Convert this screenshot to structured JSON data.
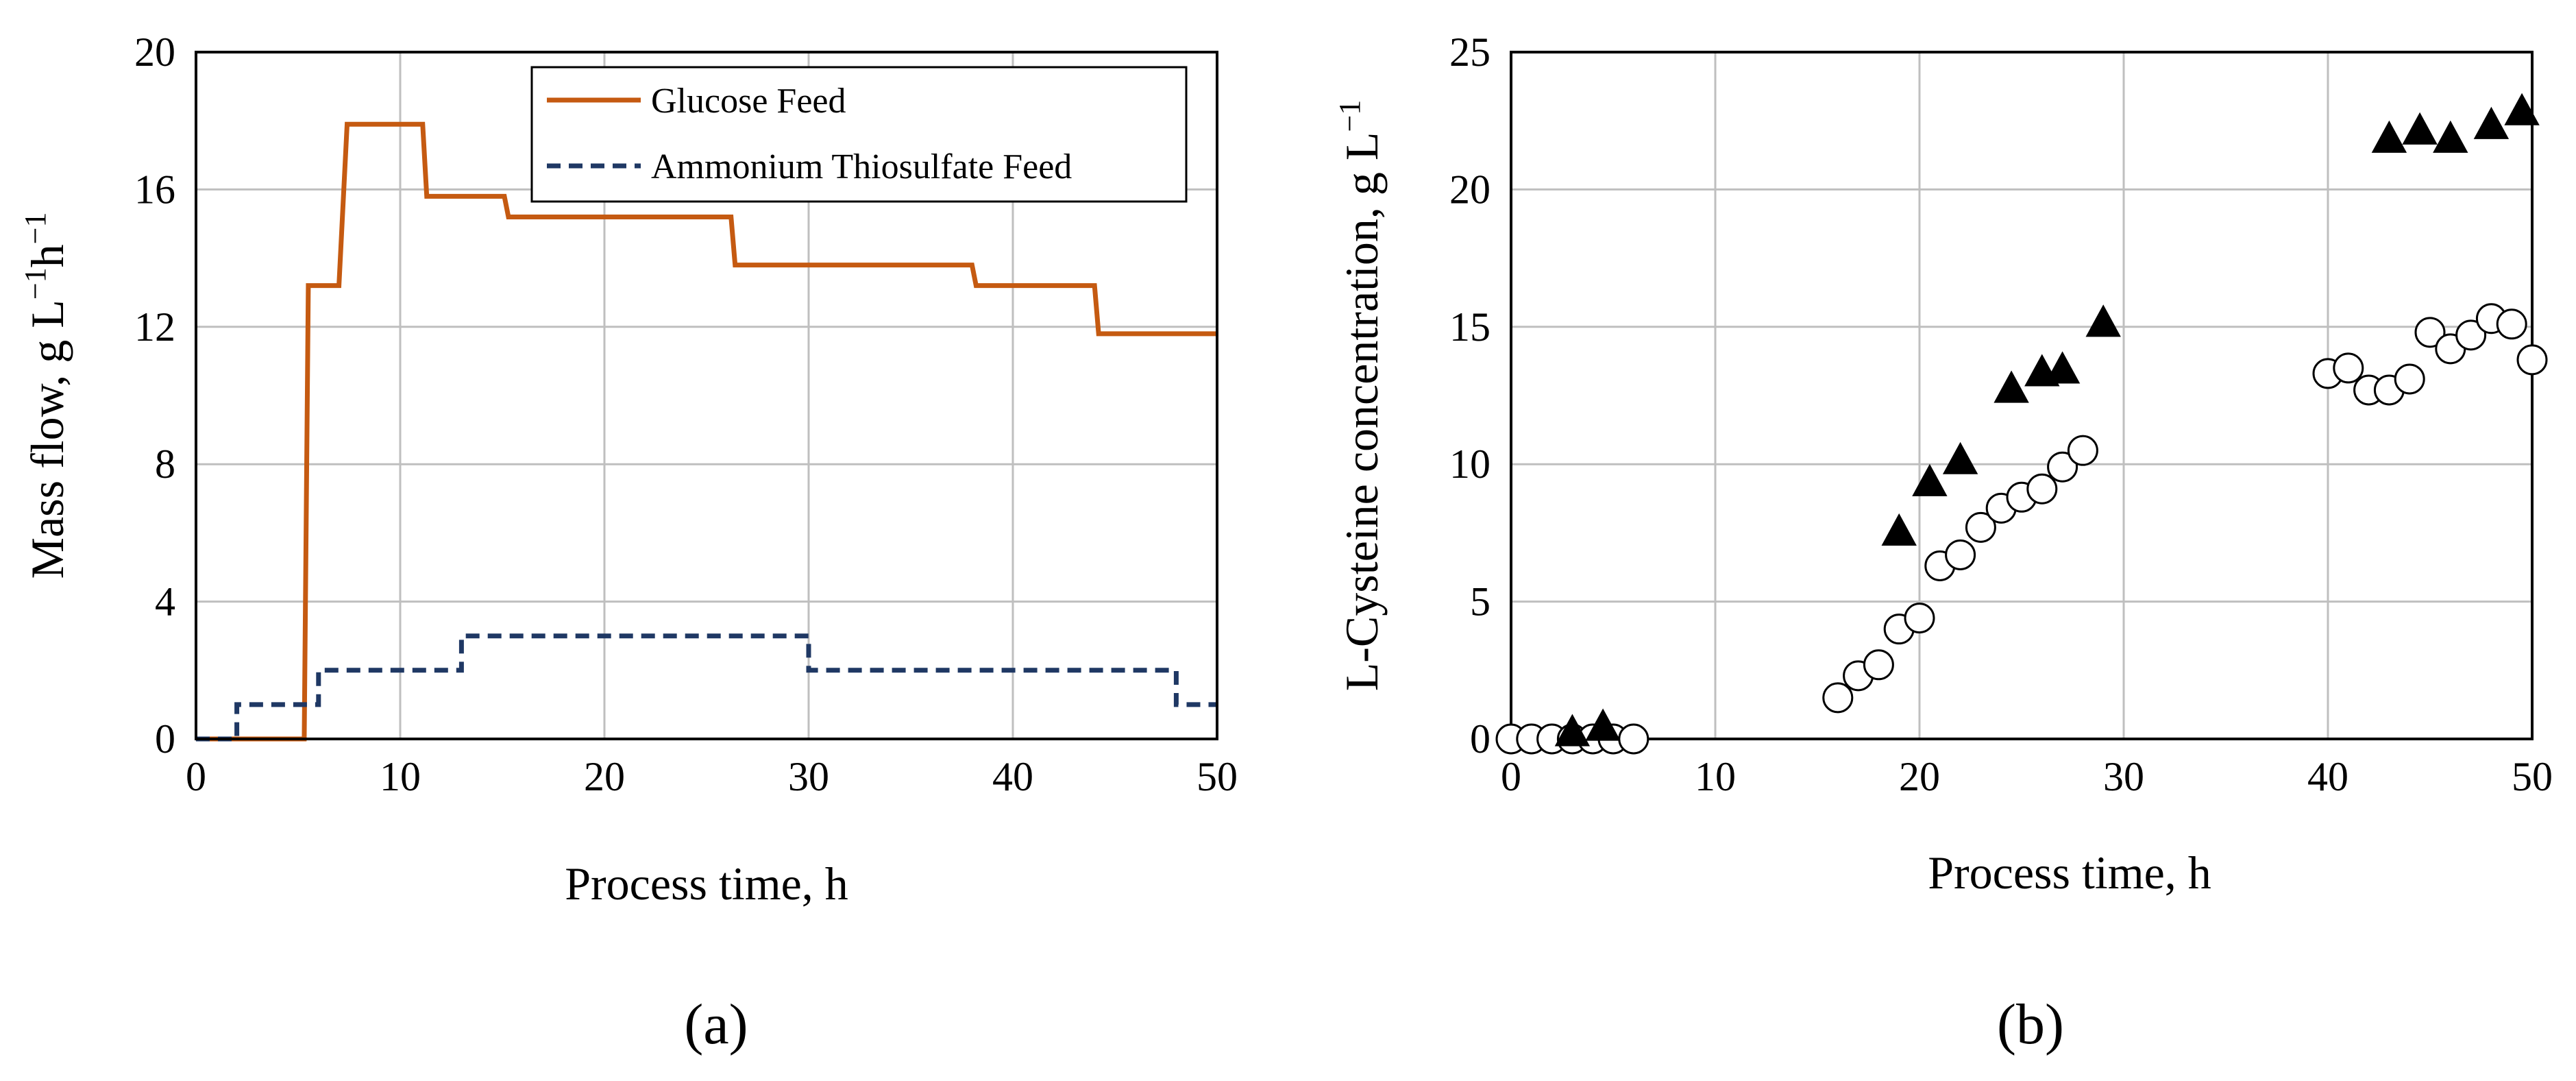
{
  "chart_data": [
    {
      "id": "a",
      "type": "line",
      "panel_label": "(a)",
      "xlabel": "Process time, h",
      "ylabel_main": "Mass flow, g L",
      "ylabel_sup1": "−1",
      "ylabel_mid": "h",
      "ylabel_sup2": "−1",
      "xlim": [
        0,
        50
      ],
      "ylim": [
        0,
        20
      ],
      "xticks": [
        "0",
        "10",
        "20",
        "30",
        "40",
        "50"
      ],
      "yticks": [
        "0",
        "4",
        "8",
        "12",
        "16",
        "20"
      ],
      "xtick_values": [
        0,
        10,
        20,
        30,
        40,
        50
      ],
      "ytick_values": [
        0,
        4,
        8,
        12,
        16,
        20
      ],
      "grid": true,
      "legend_position": "top-right",
      "series": [
        {
          "name": "Glucose Feed",
          "color": "#C55A11",
          "style": "solid",
          "x": [
            0,
            5.3,
            5.5,
            7.0,
            7.4,
            11.1,
            11.3,
            15.1,
            15.3,
            26.2,
            26.4,
            38.0,
            38.2,
            44.0,
            44.2,
            50
          ],
          "y": [
            0,
            0,
            13.2,
            13.2,
            17.9,
            17.9,
            15.8,
            15.8,
            15.2,
            15.2,
            13.8,
            13.8,
            13.2,
            13.2,
            11.8,
            11.8
          ]
        },
        {
          "name": "Ammonium Thiosulfate Feed",
          "color": "#1F3864",
          "style": "dashed",
          "x": [
            0,
            2,
            2,
            6,
            6,
            13,
            13,
            30,
            30,
            48,
            48,
            50
          ],
          "y": [
            0,
            0,
            1,
            1,
            2,
            2,
            3,
            3,
            2,
            2,
            1,
            1
          ]
        }
      ]
    },
    {
      "id": "b",
      "type": "scatter",
      "panel_label": "(b)",
      "xlabel": "Process time, h",
      "ylabel_main": "L-Cysteine concentration, g L",
      "ylabel_sup1": "−1",
      "xlim": [
        0,
        50
      ],
      "ylim": [
        0,
        25
      ],
      "xticks": [
        "0",
        "10",
        "20",
        "30",
        "40",
        "50"
      ],
      "yticks": [
        "0",
        "5",
        "10",
        "15",
        "20",
        "25"
      ],
      "xtick_values": [
        0,
        10,
        20,
        30,
        40,
        50
      ],
      "ytick_values": [
        0,
        5,
        10,
        15,
        20,
        25
      ],
      "grid": true,
      "series": [
        {
          "name": "open circles",
          "marker": "circle-open",
          "x": [
            0,
            1,
            2,
            3,
            4,
            5,
            6,
            16,
            17,
            18,
            19,
            20,
            21,
            22,
            23,
            24,
            25,
            26,
            27,
            28,
            40,
            41,
            42,
            43,
            44,
            45,
            46,
            47,
            48,
            49,
            50
          ],
          "y": [
            0,
            0,
            0,
            0,
            0,
            0,
            0,
            1.5,
            2.3,
            2.7,
            4.0,
            4.4,
            6.3,
            6.7,
            7.7,
            8.4,
            8.8,
            9.1,
            9.9,
            10.5,
            13.3,
            13.5,
            12.7,
            12.7,
            13.1,
            14.8,
            14.2,
            14.7,
            15.3,
            15.1,
            13.8
          ]
        },
        {
          "name": "filled triangles",
          "marker": "triangle-filled",
          "x": [
            3,
            4.5,
            19,
            20.5,
            22,
            24.5,
            26,
            27,
            29,
            43,
            44.5,
            46,
            48,
            49.5
          ],
          "y": [
            0.2,
            0.4,
            7.5,
            9.3,
            10.1,
            12.7,
            13.3,
            13.4,
            15.1,
            21.8,
            22.1,
            21.8,
            22.3,
            22.8
          ]
        }
      ]
    }
  ]
}
